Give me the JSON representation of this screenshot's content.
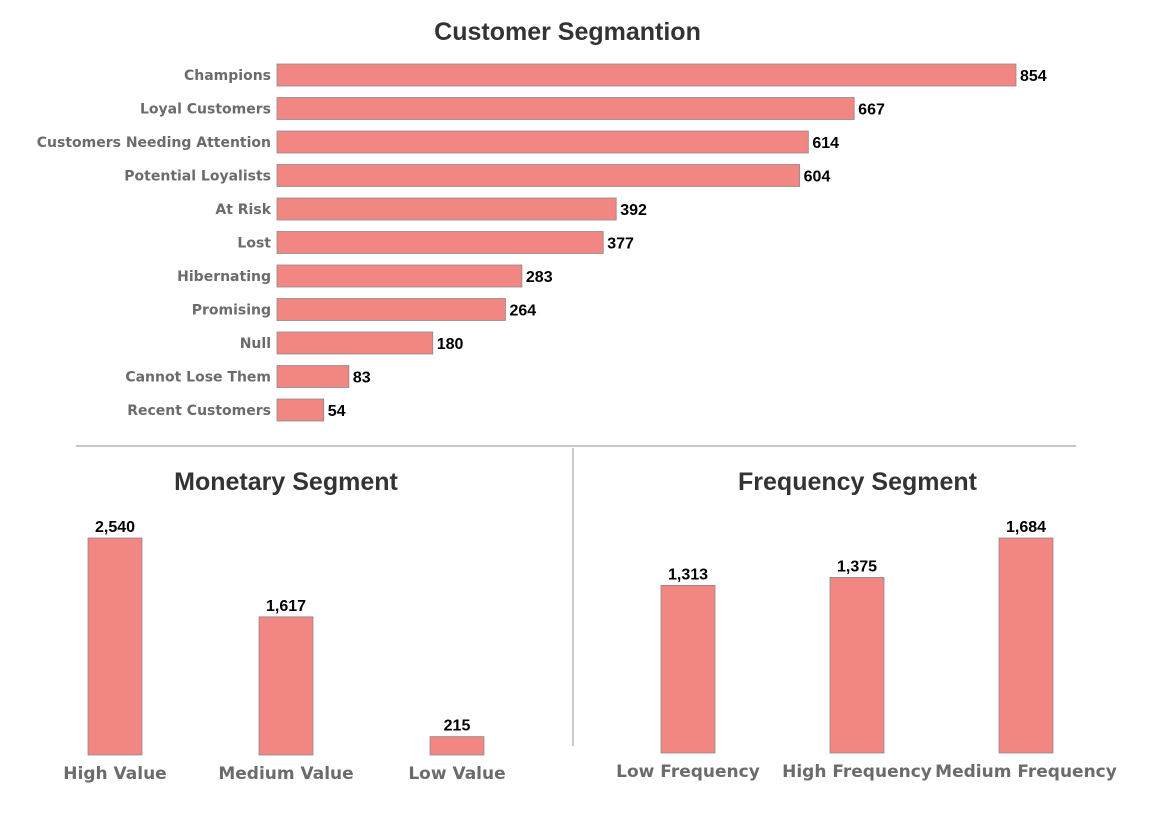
{
  "colors": {
    "bar": "#f28683",
    "bar_border": "#8a8a8a",
    "label": "#6b6b6b",
    "title": "#333333"
  },
  "chart_data": [
    {
      "type": "bar",
      "orientation": "horizontal",
      "title": "Customer Segmantion",
      "categories": [
        "Champions",
        "Loyal Customers",
        "Customers Needing Attention",
        "Potential Loyalists",
        "At Risk",
        "Lost",
        "Hibernating",
        "Promising",
        "Null",
        "Cannot Lose Them",
        "Recent Customers"
      ],
      "values": [
        854,
        667,
        614,
        604,
        392,
        377,
        283,
        264,
        180,
        83,
        54
      ],
      "value_labels": [
        "854",
        "667",
        "614",
        "604",
        "392",
        "377",
        "283",
        "264",
        "180",
        "83",
        "54"
      ],
      "xlim": [
        0,
        854
      ],
      "grid": false
    },
    {
      "type": "bar",
      "orientation": "vertical",
      "title": "Monetary Segment",
      "categories": [
        "High Value",
        "Medium Value",
        "Low Value"
      ],
      "values": [
        2540,
        1617,
        215
      ],
      "value_labels": [
        "2,540",
        "1,617",
        "215"
      ],
      "ylim": [
        0,
        2540
      ],
      "grid": false
    },
    {
      "type": "bar",
      "orientation": "vertical",
      "title": "Frequency Segment",
      "categories": [
        "Low Frequency",
        "High Frequency",
        "Medium Frequency"
      ],
      "values": [
        1313,
        1375,
        1684
      ],
      "value_labels": [
        "1,313",
        "1,375",
        "1,684"
      ],
      "ylim": [
        0,
        1684
      ],
      "grid": false
    }
  ]
}
